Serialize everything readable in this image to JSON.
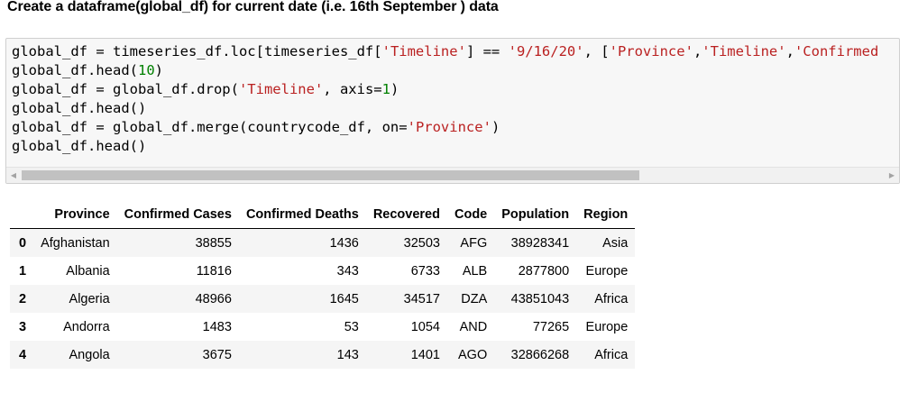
{
  "heading": "Create a dataframe(global_df) for current date (i.e. 16th September ) data",
  "code_lines": [
    [
      {
        "t": "global_df = timeseries_df.loc[timeseries_df[",
        "c": ""
      },
      {
        "t": "'Timeline'",
        "c": "str"
      },
      {
        "t": "] == ",
        "c": ""
      },
      {
        "t": "'9/16/20'",
        "c": "str"
      },
      {
        "t": ", [",
        "c": ""
      },
      {
        "t": "'Province'",
        "c": "str"
      },
      {
        "t": ",",
        "c": ""
      },
      {
        "t": "'Timeline'",
        "c": "str"
      },
      {
        "t": ",",
        "c": ""
      },
      {
        "t": "'Confirmed",
        "c": "str"
      }
    ],
    [
      {
        "t": "global_df.head(",
        "c": ""
      },
      {
        "t": "10",
        "c": "num"
      },
      {
        "t": ")",
        "c": ""
      }
    ],
    [
      {
        "t": "global_df = global_df.drop(",
        "c": ""
      },
      {
        "t": "'Timeline'",
        "c": "str"
      },
      {
        "t": ", axis=",
        "c": ""
      },
      {
        "t": "1",
        "c": "num"
      },
      {
        "t": ")",
        "c": ""
      }
    ],
    [
      {
        "t": "global_df.head()",
        "c": ""
      }
    ],
    [
      {
        "t": "global_df = global_df.merge(countrycode_df, on=",
        "c": ""
      },
      {
        "t": "'Province'",
        "c": "str"
      },
      {
        "t": ")",
        "c": ""
      }
    ],
    [
      {
        "t": "global_df.head()",
        "c": ""
      }
    ]
  ],
  "scrollbar": {
    "left_arrow": "◀",
    "right_arrow": "▶"
  },
  "table": {
    "columns": [
      "",
      "Province",
      "Confirmed Cases",
      "Confirmed Deaths",
      "Recovered",
      "Code",
      "Population",
      "Region"
    ],
    "rows": [
      [
        "0",
        "Afghanistan",
        "38855",
        "1436",
        "32503",
        "AFG",
        "38928341",
        "Asia"
      ],
      [
        "1",
        "Albania",
        "11816",
        "343",
        "6733",
        "ALB",
        "2877800",
        "Europe"
      ],
      [
        "2",
        "Algeria",
        "48966",
        "1645",
        "34517",
        "DZA",
        "43851043",
        "Africa"
      ],
      [
        "3",
        "Andorra",
        "1483",
        "53",
        "1054",
        "AND",
        "77265",
        "Europe"
      ],
      [
        "4",
        "Angola",
        "3675",
        "143",
        "1401",
        "AGO",
        "32866268",
        "Africa"
      ]
    ]
  }
}
